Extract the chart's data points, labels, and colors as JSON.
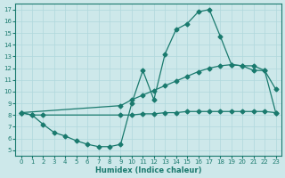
{
  "line_curve_x": [
    0,
    1,
    2,
    3,
    4,
    5,
    6,
    7,
    8,
    9,
    10,
    11,
    12,
    13,
    14,
    15,
    16,
    17,
    18,
    19,
    20,
    21,
    22,
    23
  ],
  "line_curve_y": [
    8.2,
    8.0,
    7.2,
    6.5,
    6.2,
    5.8,
    5.5,
    5.3,
    5.3,
    5.5,
    9.0,
    11.8,
    9.3,
    13.2,
    15.3,
    15.8,
    16.8,
    17.0,
    14.7,
    12.3,
    12.2,
    11.8,
    11.8,
    10.2
  ],
  "line_upper_x": [
    0,
    9,
    10,
    11,
    12,
    13,
    14,
    15,
    16,
    17,
    18,
    19,
    20,
    21,
    22,
    23
  ],
  "line_upper_y": [
    8.2,
    8.8,
    9.3,
    9.7,
    10.1,
    10.5,
    10.9,
    11.3,
    11.7,
    12.0,
    12.2,
    12.3,
    12.2,
    12.2,
    11.8,
    8.2
  ],
  "line_flat_x": [
    0,
    1,
    2,
    9,
    10,
    11,
    12,
    13,
    14,
    15,
    16,
    17,
    18,
    19,
    20,
    21,
    22,
    23
  ],
  "line_flat_y": [
    8.2,
    8.0,
    8.0,
    8.0,
    8.0,
    8.1,
    8.1,
    8.2,
    8.2,
    8.3,
    8.3,
    8.3,
    8.3,
    8.3,
    8.3,
    8.3,
    8.3,
    8.2
  ],
  "color": "#1a7a6e",
  "bg_color": "#cde8ea",
  "grid_color": "#b0d8dc",
  "xlabel": "Humidex (Indice chaleur)",
  "xlim": [
    -0.5,
    23.5
  ],
  "ylim": [
    4.5,
    17.5
  ],
  "yticks": [
    5,
    6,
    7,
    8,
    9,
    10,
    11,
    12,
    13,
    14,
    15,
    16,
    17
  ],
  "xticks": [
    0,
    1,
    2,
    3,
    4,
    5,
    6,
    7,
    8,
    9,
    10,
    11,
    12,
    13,
    14,
    15,
    16,
    17,
    18,
    19,
    20,
    21,
    22,
    23
  ]
}
